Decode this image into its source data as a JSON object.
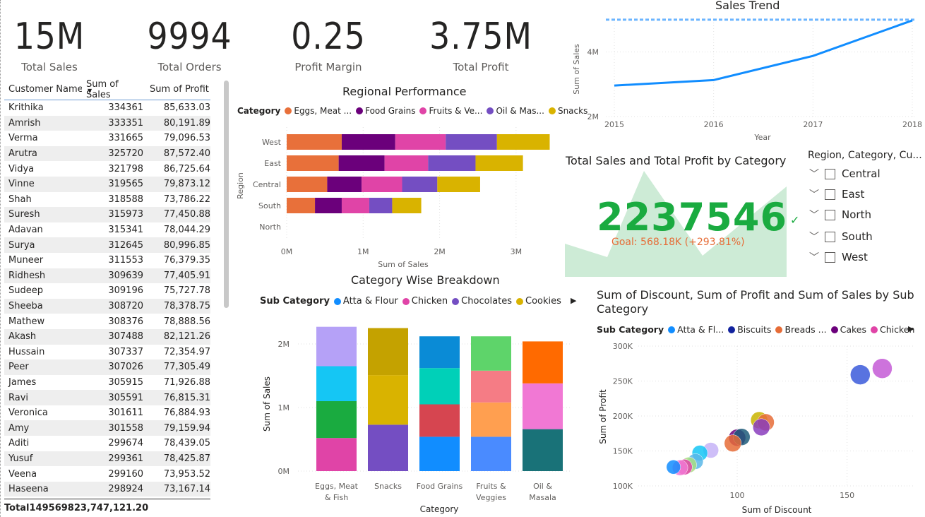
{
  "kpis": [
    {
      "value": "15M",
      "label": "Total Sales"
    },
    {
      "value": "9994",
      "label": "Total Orders"
    },
    {
      "value": "0.25",
      "label": "Profit Margin"
    },
    {
      "value": "3.75M",
      "label": "Total Profit"
    }
  ],
  "table": {
    "headers": [
      "Customer Name",
      "Sum of Sales",
      "Sum of Profit"
    ],
    "rows": [
      [
        "Krithika",
        "334361",
        "85,633.03"
      ],
      [
        "Amrish",
        "333351",
        "80,191.89"
      ],
      [
        "Verma",
        "331665",
        "79,096.53"
      ],
      [
        "Arutra",
        "325720",
        "87,572.40"
      ],
      [
        "Vidya",
        "321798",
        "86,725.64"
      ],
      [
        "Vinne",
        "319565",
        "79,873.12"
      ],
      [
        "Shah",
        "318588",
        "73,786.22"
      ],
      [
        "Suresh",
        "315973",
        "77,450.88"
      ],
      [
        "Adavan",
        "315341",
        "78,044.29"
      ],
      [
        "Surya",
        "312645",
        "80,996.85"
      ],
      [
        "Muneer",
        "311553",
        "76,379.35"
      ],
      [
        "Ridhesh",
        "309639",
        "77,405.91"
      ],
      [
        "Sudeep",
        "309196",
        "75,727.78"
      ],
      [
        "Sheeba",
        "308720",
        "78,378.75"
      ],
      [
        "Mathew",
        "308376",
        "78,888.56"
      ],
      [
        "Akash",
        "307488",
        "82,121.26"
      ],
      [
        "Hussain",
        "307337",
        "72,354.97"
      ],
      [
        "Peer",
        "307026",
        "77,305.49"
      ],
      [
        "James",
        "305915",
        "71,926.88"
      ],
      [
        "Ravi",
        "305591",
        "76,815.31"
      ],
      [
        "Veronica",
        "301611",
        "76,884.93"
      ],
      [
        "Amy",
        "301558",
        "79,159.94"
      ],
      [
        "Aditi",
        "299674",
        "78,439.05"
      ],
      [
        "Yusuf",
        "299361",
        "78,425.87"
      ],
      [
        "Veena",
        "299160",
        "73,953.52"
      ],
      [
        "Haseena",
        "298924",
        "73,167.14"
      ]
    ],
    "total": {
      "label": "Total",
      "sales": "14956982",
      "profit": "3,747,121.20"
    }
  },
  "regional": {
    "title": "Regional Performance",
    "legend_key": "Category",
    "legend": [
      {
        "name": "Eggs, Meat ...",
        "color": "#e8703a"
      },
      {
        "name": "Food Grains",
        "color": "#6b007b"
      },
      {
        "name": "Fruits & Ve...",
        "color": "#e044a7"
      },
      {
        "name": "Oil & Mas...",
        "color": "#744ec2"
      },
      {
        "name": "Snacks",
        "color": "#d9b300"
      }
    ],
    "ylabel": "Region",
    "xlabel": "Sum of Sales",
    "xticks": [
      "0M",
      "1M",
      "2M",
      "3M"
    ]
  },
  "sales_trend": {
    "title": "Sales Trend",
    "ylabel": "Sum of Sales",
    "xlabel": "Year",
    "yticks": [
      "4M",
      "2M"
    ]
  },
  "card": {
    "title": "Total Sales and Total Profit by Category",
    "value": "2237546",
    "check": "✓",
    "goal": "Goal: 568.18K (+293.81%)"
  },
  "slicer": {
    "title": "Region, Category, Cu...",
    "items": [
      "Central",
      "East",
      "North",
      "South",
      "West"
    ]
  },
  "category_breakdown": {
    "title": "Category Wise Breakdown",
    "legend_key": "Sub Category",
    "legend": [
      {
        "name": "Atta & Flour",
        "color": "#118dff"
      },
      {
        "name": "Chicken",
        "color": "#e044a7"
      },
      {
        "name": "Chocolates",
        "color": "#744ec2"
      },
      {
        "name": "Cookies",
        "color": "#d9b300"
      }
    ],
    "ylabel": "Sum of Sales",
    "xlabel": "Category",
    "yticks": [
      "2M",
      "1M",
      "0M"
    ],
    "categories": [
      "Eggs, Meat & Fish",
      "Snacks",
      "Food Grains",
      "Fruits & Veggies",
      "Oil & Masala"
    ],
    "category_lines": [
      [
        "Eggs, Meat",
        "& Fish"
      ],
      [
        "Snacks"
      ],
      [
        "Food Grains"
      ],
      [
        "Fruits &",
        "Veggies"
      ],
      [
        "Oil &",
        "Masala"
      ]
    ]
  },
  "scatter": {
    "title_line1": "Sum of Discount, Sum of Profit and Sum of Sales by Sub",
    "title_line2": "Category",
    "legend_key": "Sub Category",
    "legend": [
      {
        "name": "Atta & Fl...",
        "color": "#118dff"
      },
      {
        "name": "Biscuits",
        "color": "#12239e"
      },
      {
        "name": "Breads ...",
        "color": "#e66c37"
      },
      {
        "name": "Cakes",
        "color": "#6b007b"
      },
      {
        "name": "Chicken",
        "color": "#e044a7"
      }
    ],
    "xlabel": "Sum of Discount",
    "ylabel": "Sum of Profit",
    "yticks": [
      "300K",
      "250K",
      "200K",
      "150K",
      "100K"
    ],
    "xticks": [
      "100",
      "150"
    ]
  },
  "chart_data": [
    {
      "type": "bar",
      "orientation": "horizontal-stacked",
      "title": "Regional Performance",
      "xlabel": "Sum of Sales",
      "ylabel": "Region",
      "categories": [
        "West",
        "East",
        "Central",
        "South",
        "North"
      ],
      "xlim": [
        0,
        3500000
      ],
      "series": [
        {
          "name": "Eggs, Meat ...",
          "color": "#e8703a",
          "values": [
            720000,
            680000,
            530000,
            370000,
            0
          ]
        },
        {
          "name": "Food Grains",
          "color": "#6b007b",
          "values": [
            700000,
            600000,
            450000,
            350000,
            0
          ]
        },
        {
          "name": "Fruits & Ve...",
          "color": "#e044a7",
          "values": [
            660000,
            570000,
            530000,
            360000,
            0
          ]
        },
        {
          "name": "Oil & Mas...",
          "color": "#744ec2",
          "values": [
            670000,
            620000,
            460000,
            300000,
            0
          ]
        },
        {
          "name": "Snacks",
          "color": "#d9b300",
          "values": [
            690000,
            620000,
            560000,
            380000,
            0
          ]
        }
      ]
    },
    {
      "type": "line",
      "title": "Sales Trend",
      "xlabel": "Year",
      "ylabel": "Sum of Sales",
      "x": [
        2015,
        2016,
        2017,
        2018
      ],
      "values": [
        2960000,
        3130000,
        3880000,
        4980000
      ],
      "reference_line": 4980000,
      "ylim": [
        2000000,
        5000000
      ],
      "color": "#118dff"
    },
    {
      "type": "bar",
      "orientation": "vertical-stacked",
      "title": "Category Wise Breakdown",
      "xlabel": "Category",
      "ylabel": "Sum of Sales",
      "categories": [
        "Eggs, Meat & Fish",
        "Snacks",
        "Food Grains",
        "Fruits & Veggies",
        "Oil & Masala"
      ],
      "ylim": [
        0,
        2300000
      ],
      "segments": [
        [
          {
            "value": 520000,
            "color": "#e044a7"
          },
          {
            "value": 580000,
            "color": "#1aab40"
          },
          {
            "value": 550000,
            "color": "#15c6f4"
          },
          {
            "value": 620000,
            "color": "#b5a1f7"
          }
        ],
        [
          {
            "value": 730000,
            "color": "#744ec2"
          },
          {
            "value": 780000,
            "color": "#d9b300"
          },
          {
            "value": 740000,
            "color": "#c4a200"
          }
        ],
        [
          {
            "value": 540000,
            "color": "#118dff"
          },
          {
            "value": 510000,
            "color": "#d64550"
          },
          {
            "value": 570000,
            "color": "#00d0b8"
          },
          {
            "value": 500000,
            "color": "#0a8bd6"
          }
        ],
        [
          {
            "value": 540000,
            "color": "#4a8bff"
          },
          {
            "value": 540000,
            "color": "#ff9f50"
          },
          {
            "value": 500000,
            "color": "#f57c85"
          },
          {
            "value": 540000,
            "color": "#5ed46a"
          }
        ],
        [
          {
            "value": 660000,
            "color": "#197278"
          },
          {
            "value": 720000,
            "color": "#f178d4"
          },
          {
            "value": 660000,
            "color": "#ff6a00"
          }
        ]
      ]
    },
    {
      "type": "scatter",
      "title": "Sum of Discount, Sum of Profit and Sum of Sales by Sub Category",
      "xlabel": "Sum of Discount",
      "ylabel": "Sum of Profit",
      "xlim": [
        55,
        180
      ],
      "ylim": [
        100000,
        300000
      ],
      "points": [
        {
          "x": 156,
          "y": 259000,
          "r": 14,
          "color": "#3b5bdb"
        },
        {
          "x": 166,
          "y": 268000,
          "r": 14,
          "color": "#c45ad6"
        },
        {
          "x": 110,
          "y": 194000,
          "r": 12,
          "color": "#c9b400"
        },
        {
          "x": 113,
          "y": 191000,
          "r": 12,
          "color": "#e66c37"
        },
        {
          "x": 111,
          "y": 184000,
          "r": 12,
          "color": "#8a3dbd"
        },
        {
          "x": 100,
          "y": 169000,
          "r": 12,
          "color": "#6b007b"
        },
        {
          "x": 102,
          "y": 170000,
          "r": 12,
          "color": "#1e5c7a"
        },
        {
          "x": 98,
          "y": 161000,
          "r": 12,
          "color": "#e66c37"
        },
        {
          "x": 88,
          "y": 151000,
          "r": 11,
          "color": "#c6b3f7"
        },
        {
          "x": 83,
          "y": 147000,
          "r": 11,
          "color": "#15c6f4"
        },
        {
          "x": 81,
          "y": 135000,
          "r": 11,
          "color": "#5ab7e8"
        },
        {
          "x": 78,
          "y": 130000,
          "r": 11,
          "color": "#a8dd83"
        },
        {
          "x": 76,
          "y": 127000,
          "r": 11,
          "color": "#e044a7"
        },
        {
          "x": 74,
          "y": 126000,
          "r": 11,
          "color": "#f178d4"
        },
        {
          "x": 71,
          "y": 127000,
          "r": 10,
          "color": "#118dff"
        }
      ]
    }
  ]
}
